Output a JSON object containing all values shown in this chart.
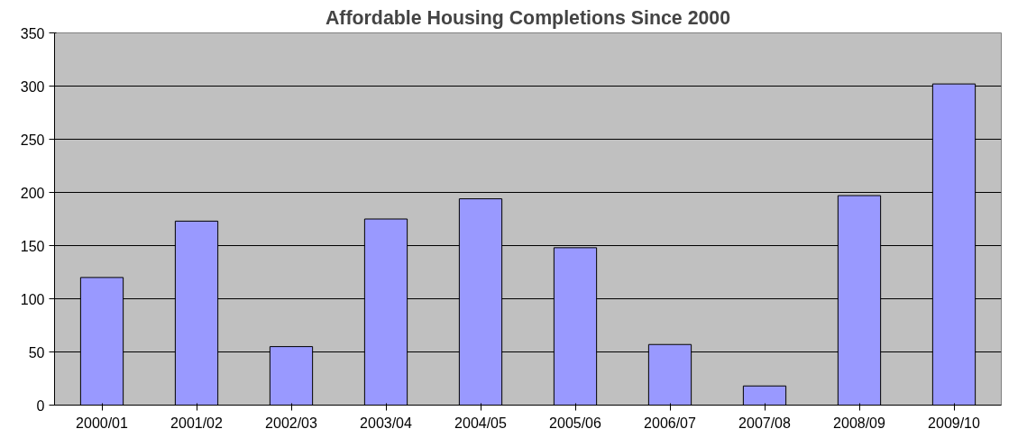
{
  "chart_data": {
    "type": "bar",
    "title": "Affordable Housing Completions Since 2000",
    "categories": [
      "2000/01",
      "2001/02",
      "2002/03",
      "2003/04",
      "2004/05",
      "2005/06",
      "2006/07",
      "2007/08",
      "2008/09",
      "2009/10"
    ],
    "values": [
      120,
      173,
      55,
      175,
      194,
      148,
      57,
      18,
      197,
      302
    ],
    "color": "#9999ff",
    "ylim": [
      0,
      350
    ],
    "yticks": [
      0,
      50,
      100,
      150,
      200,
      250,
      300,
      350
    ],
    "grid": "y"
  }
}
